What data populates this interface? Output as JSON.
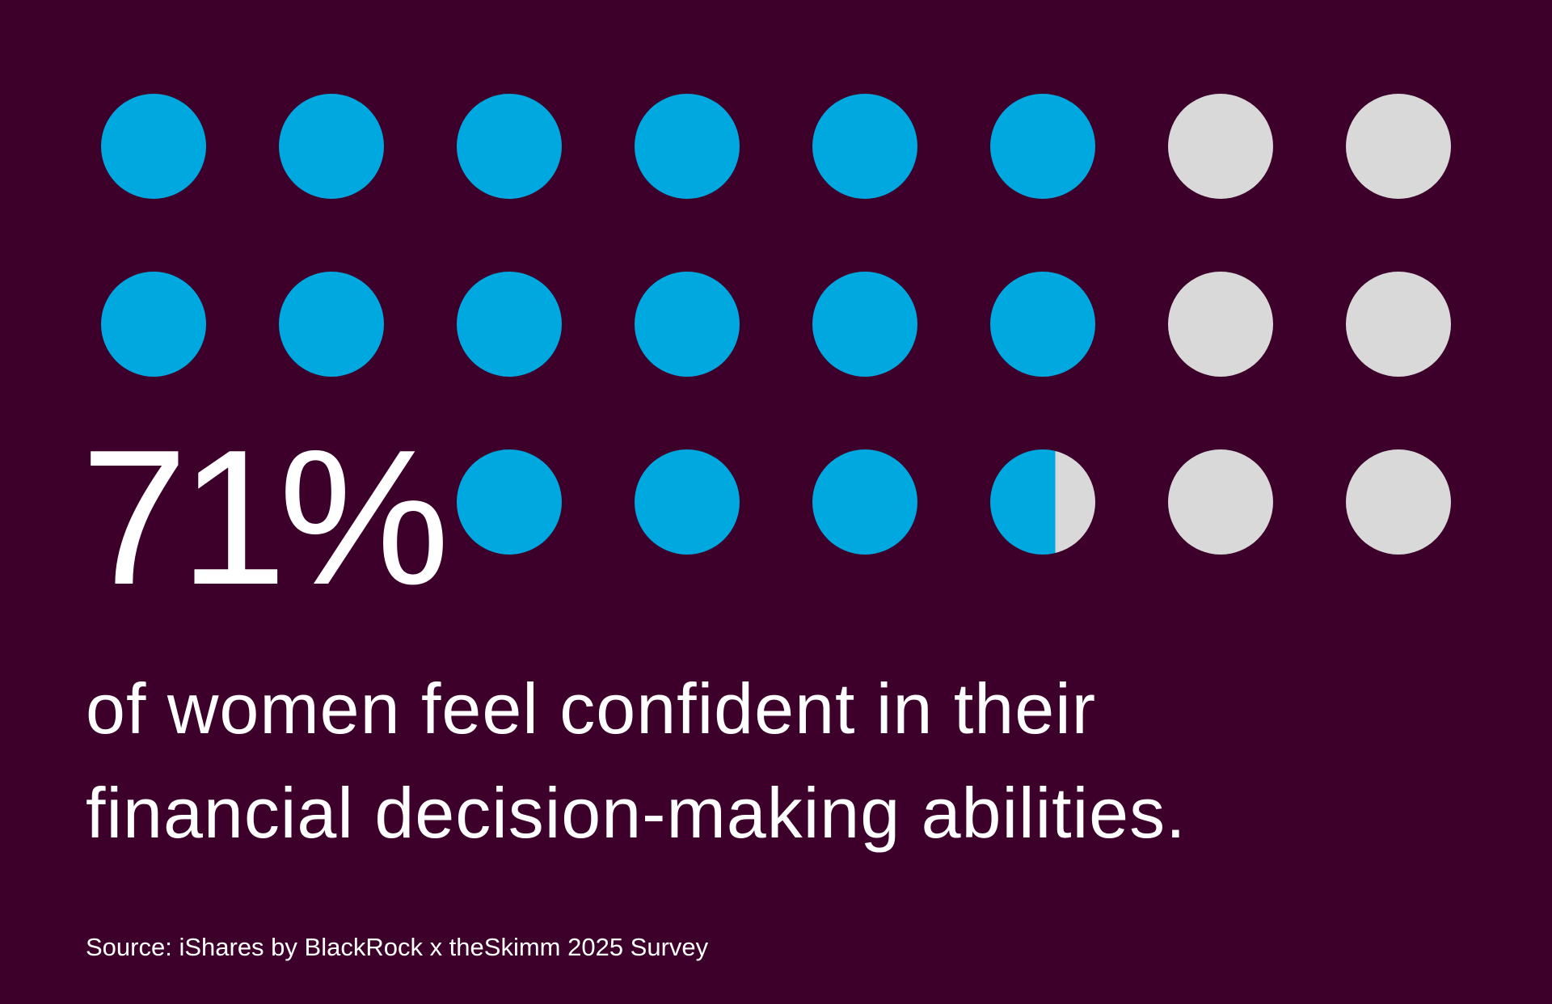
{
  "colors": {
    "background": "#3c002b",
    "filled": "#00a8e0",
    "empty": "#d9d9d9",
    "text": "#ffffff"
  },
  "headline": {
    "stat": "71%",
    "caption_line1": "of women feel confident in their",
    "caption_line2": "financial decision-making abilities."
  },
  "source": "Source: iShares by BlackRock x theSkimm 2025 Survey",
  "chart_data": {
    "type": "waffle",
    "title": "71% of women feel confident in their financial decision-making abilities.",
    "value_percent": 71,
    "grid": {
      "rows": 3,
      "columns": 8,
      "total_dots": 22,
      "note": "first two cells of row 3 replaced by the 71% label"
    },
    "dots": [
      {
        "row": 0,
        "col": 0,
        "fill": 1
      },
      {
        "row": 0,
        "col": 1,
        "fill": 1
      },
      {
        "row": 0,
        "col": 2,
        "fill": 1
      },
      {
        "row": 0,
        "col": 3,
        "fill": 1
      },
      {
        "row": 0,
        "col": 4,
        "fill": 1
      },
      {
        "row": 0,
        "col": 5,
        "fill": 1
      },
      {
        "row": 0,
        "col": 6,
        "fill": 0
      },
      {
        "row": 0,
        "col": 7,
        "fill": 0
      },
      {
        "row": 1,
        "col": 0,
        "fill": 1
      },
      {
        "row": 1,
        "col": 1,
        "fill": 1
      },
      {
        "row": 1,
        "col": 2,
        "fill": 1
      },
      {
        "row": 1,
        "col": 3,
        "fill": 1
      },
      {
        "row": 1,
        "col": 4,
        "fill": 1
      },
      {
        "row": 1,
        "col": 5,
        "fill": 1
      },
      {
        "row": 1,
        "col": 6,
        "fill": 0
      },
      {
        "row": 1,
        "col": 7,
        "fill": 0
      },
      {
        "row": 2,
        "col": 2,
        "fill": 1
      },
      {
        "row": 2,
        "col": 3,
        "fill": 1
      },
      {
        "row": 2,
        "col": 4,
        "fill": 1
      },
      {
        "row": 2,
        "col": 5,
        "fill": 0.62
      },
      {
        "row": 2,
        "col": 6,
        "fill": 0
      },
      {
        "row": 2,
        "col": 7,
        "fill": 0
      }
    ],
    "legend": [],
    "source": "iShares by BlackRock x theSkimm 2025 Survey"
  }
}
